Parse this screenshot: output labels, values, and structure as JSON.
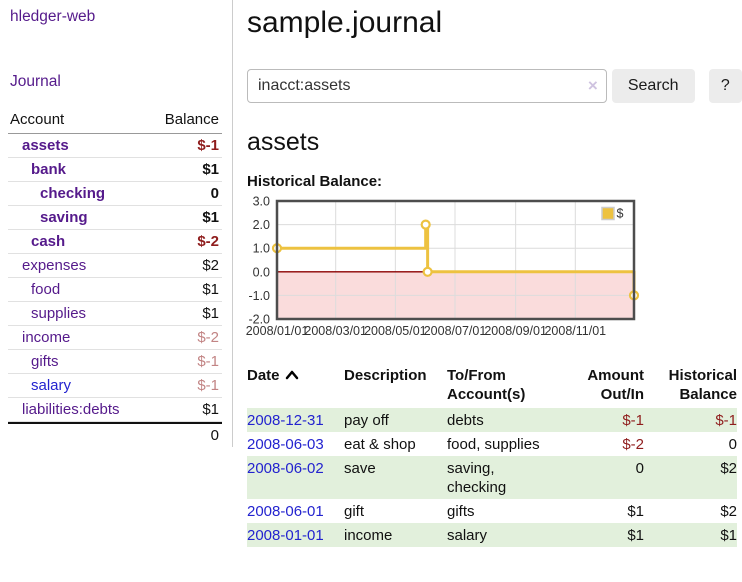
{
  "colors": {
    "link_purple": "#551a8b",
    "link_blue": "#2323cf",
    "negative_strong": "#8f1d1d",
    "negative_soft": "#c28484",
    "row_stripe_green": "#e2f0dc",
    "chart_gold": "#edc240",
    "negative_zone_pink": "#fadcdc",
    "zero_line_red": "#8b0000"
  },
  "app": {
    "title": "hledger-web",
    "nav_journal": "Journal"
  },
  "sidebar": {
    "header": {
      "account": "Account",
      "balance": "Balance"
    },
    "accounts": [
      {
        "name": "assets",
        "balance": "$-1"
      },
      {
        "name": "bank",
        "balance": "$1"
      },
      {
        "name": "checking",
        "balance": "0"
      },
      {
        "name": "saving",
        "balance": "$1"
      },
      {
        "name": "cash",
        "balance": "$-2"
      },
      {
        "name": "expenses",
        "balance": "$2"
      },
      {
        "name": "food",
        "balance": "$1"
      },
      {
        "name": "supplies",
        "balance": "$1"
      },
      {
        "name": "income",
        "balance": "$-2"
      },
      {
        "name": "gifts",
        "balance": "$-1"
      },
      {
        "name": "salary",
        "balance": "$-1"
      },
      {
        "name": "liabilities:debts",
        "balance": "$1"
      }
    ],
    "total": "0"
  },
  "header": {
    "title": "sample.journal"
  },
  "search": {
    "value": "inacct:assets",
    "clear_icon": "×",
    "button_label": "Search",
    "help_label": "?"
  },
  "account_page": {
    "heading": "assets",
    "chart_label": "Historical Balance:"
  },
  "chart_data": {
    "type": "line",
    "style": "step-after",
    "title": "Historical Balance",
    "xlim": [
      "2008-01-01",
      "2008-12-31"
    ],
    "ylim": [
      -2,
      3
    ],
    "x_ticks": [
      "2008/01/01",
      "2008/03/01",
      "2008/05/01",
      "2008/07/01",
      "2008/09/01",
      "2008/11/01"
    ],
    "y_ticks": [
      "3.0",
      "2.0",
      "1.0",
      "0.0",
      "-1.0",
      "-2.0"
    ],
    "series": [
      {
        "name": "$",
        "color": "#edc240",
        "points": [
          [
            "2008-01-01",
            1
          ],
          [
            "2008-06-01",
            2
          ],
          [
            "2008-06-03",
            0
          ],
          [
            "2008-12-31",
            -1
          ]
        ]
      }
    ],
    "legend": {
      "label": "$",
      "position": "top-right"
    },
    "grid_color": "#dcdcdc",
    "border_color": "#4d4d4d",
    "negative_zone_color": "#fadcdc",
    "zero_line_color": "#8b0000"
  },
  "register": {
    "columns": [
      {
        "label": "Date",
        "sort": "ascending"
      },
      {
        "label": "Description"
      },
      {
        "label": "To/From Account(s)"
      },
      {
        "label": "Amount Out/In"
      },
      {
        "label": "Historical Balance"
      }
    ],
    "rows": [
      {
        "date": "2008-12-31",
        "description": "pay off",
        "accounts": "debts",
        "amount": "$-1",
        "balance": "$-1"
      },
      {
        "date": "2008-06-03",
        "description": "eat & shop",
        "accounts": "food, supplies",
        "amount": "$-2",
        "balance": "0"
      },
      {
        "date": "2008-06-02",
        "description": "save",
        "accounts": "saving, checking",
        "amount": "0",
        "balance": "$2"
      },
      {
        "date": "2008-06-01",
        "description": "gift",
        "accounts": "gifts",
        "amount": "$1",
        "balance": "$2"
      },
      {
        "date": "2008-01-01",
        "description": "income",
        "accounts": "salary",
        "amount": "$1",
        "balance": "$1"
      }
    ]
  }
}
